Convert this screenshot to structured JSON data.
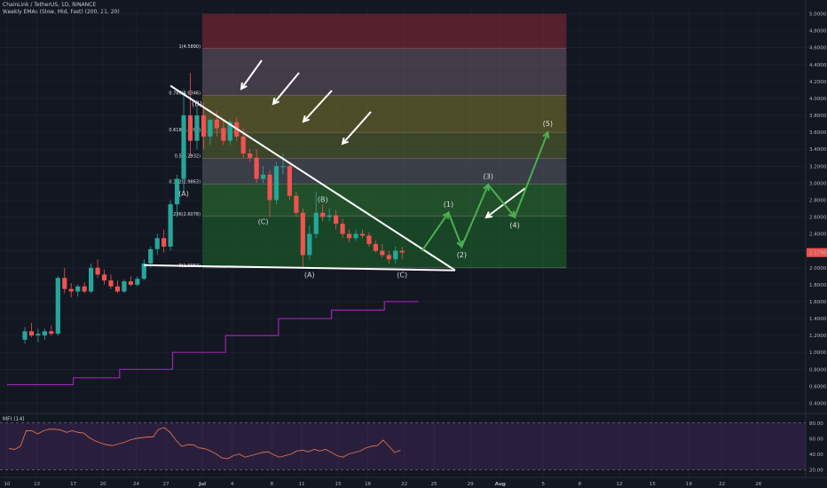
{
  "header": {
    "symbol_line": "ChainLink / TetherUS, 1D, BINANCE",
    "indicator_line": "Weekly EMAs (Slow, Mid, Fast) (200, 21, 20)"
  },
  "mfi": {
    "label": "MFI (14)",
    "axis_ticks": [
      "80.00",
      "60.00",
      "40.00",
      "20.00"
    ],
    "values": [
      47,
      46,
      50,
      70,
      70,
      66,
      70,
      72,
      72,
      71,
      68,
      70,
      68,
      67,
      61,
      57,
      54,
      52,
      51,
      53,
      55,
      58,
      60,
      61,
      62,
      62,
      72,
      74,
      68,
      58,
      50,
      52,
      52,
      48,
      47,
      44,
      40,
      35,
      34,
      38,
      40,
      36,
      38,
      40,
      42,
      43,
      39,
      36,
      38,
      40,
      44,
      45,
      43,
      46,
      44,
      46,
      42,
      38,
      36,
      40,
      42,
      44,
      48,
      50,
      51,
      58,
      50,
      42,
      45
    ]
  },
  "price": {
    "last_label": "2.1796",
    "last_value": 2.1796,
    "colors": {
      "up": "#26a69a",
      "down": "#ef5350",
      "ema": "#9c27b0",
      "projection": "#4caf50",
      "trendline": "#ffffff"
    }
  },
  "fib_labels": [
    "1(4.5890)",
    "0.786(4.0346)",
    "0.618(3.5994)",
    "0.5(3.2932)",
    "0.382(2.9863)",
    "0.236(2.6078)",
    "0(1.9984)"
  ],
  "wave_labels": [
    "(B)",
    "(A)",
    "(C)",
    "(B)",
    "(A)",
    "(C)"
  ],
  "projection_labels": [
    "(1)",
    "(2)",
    "(3)",
    "(4)",
    "(5)"
  ],
  "chart_data": {
    "type": "candlestick",
    "x_tick_labels": [
      "10",
      "13",
      "17",
      "20",
      "24",
      "27",
      "Jul",
      "4",
      "8",
      "11",
      "15",
      "18",
      "22",
      "25",
      "29",
      "Aug",
      "5",
      "8",
      "12",
      "15",
      "19",
      "22",
      "26"
    ],
    "y_tick_labels": [
      "5.0000",
      "4.8000",
      "4.6000",
      "4.4000",
      "4.2000",
      "4.0000",
      "3.8000",
      "3.6000",
      "3.4000",
      "3.2000",
      "3.0000",
      "2.8000",
      "2.6000",
      "2.4000",
      "2.2000",
      "2.0000",
      "1.8000",
      "1.6000",
      "1.4000",
      "1.2000",
      "1.0000",
      "0.8000",
      "0.6000",
      "0.4000"
    ],
    "candles": [
      [
        1.15,
        1.3,
        1.1,
        1.25
      ],
      [
        1.25,
        1.35,
        1.18,
        1.2
      ],
      [
        1.2,
        1.28,
        1.12,
        1.22
      ],
      [
        1.2,
        1.28,
        1.15,
        1.25
      ],
      [
        1.25,
        1.32,
        1.2,
        1.22
      ],
      [
        1.22,
        1.9,
        1.2,
        1.88
      ],
      [
        1.88,
        2.0,
        1.7,
        1.75
      ],
      [
        1.75,
        1.82,
        1.65,
        1.72
      ],
      [
        1.72,
        1.8,
        1.66,
        1.78
      ],
      [
        1.78,
        1.83,
        1.7,
        1.72
      ],
      [
        1.72,
        2.05,
        1.7,
        2.0
      ],
      [
        2.0,
        2.1,
        1.88,
        1.92
      ],
      [
        1.92,
        1.98,
        1.8,
        1.85
      ],
      [
        1.85,
        1.92,
        1.75,
        1.78
      ],
      [
        1.78,
        1.85,
        1.7,
        1.72
      ],
      [
        1.72,
        1.86,
        1.7,
        1.84
      ],
      [
        1.84,
        1.9,
        1.78,
        1.8
      ],
      [
        1.8,
        1.9,
        1.78,
        1.87
      ],
      [
        1.87,
        2.1,
        1.85,
        2.05
      ],
      [
        2.05,
        2.25,
        2.0,
        2.22
      ],
      [
        2.22,
        2.4,
        2.15,
        2.35
      ],
      [
        2.35,
        2.45,
        2.18,
        2.25
      ],
      [
        2.25,
        2.8,
        2.2,
        2.75
      ],
      [
        2.75,
        3.1,
        2.6,
        3.05
      ],
      [
        3.05,
        4.1,
        2.9,
        3.8
      ],
      [
        3.8,
        4.3,
        3.3,
        3.5
      ],
      [
        3.5,
        3.9,
        3.4,
        3.8
      ],
      [
        3.8,
        3.95,
        3.4,
        3.55
      ],
      [
        3.55,
        3.75,
        3.45,
        3.75
      ],
      [
        3.75,
        3.85,
        3.55,
        3.65
      ],
      [
        3.65,
        3.75,
        3.45,
        3.5
      ],
      [
        3.5,
        3.75,
        3.45,
        3.72
      ],
      [
        3.72,
        3.78,
        3.5,
        3.55
      ],
      [
        3.55,
        3.65,
        3.3,
        3.35
      ],
      [
        3.35,
        3.4,
        3.25,
        3.3
      ],
      [
        3.3,
        3.4,
        3.0,
        3.05
      ],
      [
        3.05,
        3.2,
        3.0,
        3.1
      ],
      [
        3.1,
        3.15,
        2.6,
        2.8
      ],
      [
        2.8,
        3.25,
        2.75,
        3.2
      ],
      [
        3.2,
        3.35,
        3.1,
        3.2
      ],
      [
        3.2,
        3.25,
        2.8,
        2.85
      ],
      [
        2.85,
        2.9,
        2.6,
        2.65
      ],
      [
        2.65,
        2.7,
        2.0,
        2.15
      ],
      [
        2.15,
        2.5,
        2.1,
        2.4
      ],
      [
        2.4,
        2.9,
        2.35,
        2.65
      ],
      [
        2.65,
        2.75,
        2.55,
        2.6
      ],
      [
        2.6,
        2.7,
        2.55,
        2.62
      ],
      [
        2.62,
        2.68,
        2.45,
        2.52
      ],
      [
        2.52,
        2.58,
        2.35,
        2.4
      ],
      [
        2.4,
        2.45,
        2.3,
        2.35
      ],
      [
        2.35,
        2.45,
        2.32,
        2.4
      ],
      [
        2.4,
        2.45,
        2.35,
        2.38
      ],
      [
        2.38,
        2.42,
        2.25,
        2.28
      ],
      [
        2.28,
        2.32,
        2.18,
        2.2
      ],
      [
        2.2,
        2.28,
        2.12,
        2.15
      ],
      [
        2.15,
        2.2,
        2.05,
        2.1
      ],
      [
        2.1,
        2.25,
        2.05,
        2.2
      ],
      [
        2.2,
        2.25,
        2.1,
        2.18
      ]
    ],
    "ema_weekly": [
      [
        0,
        0.62
      ],
      [
        10,
        0.7
      ],
      [
        17,
        0.8
      ],
      [
        25,
        1.0
      ],
      [
        33,
        1.2
      ],
      [
        41,
        1.4
      ],
      [
        49,
        1.5
      ],
      [
        57,
        1.6
      ],
      [
        62,
        1.61
      ]
    ],
    "fib_levels": [
      {
        "ratio": "1",
        "price": 4.589,
        "fill": "#8a2a34"
      },
      {
        "ratio": "0.786",
        "price": 4.0346,
        "fill": "#6b5a67"
      },
      {
        "ratio": "0.618",
        "price": 3.5994,
        "fill": "#7b7a2e"
      },
      {
        "ratio": "0.5",
        "price": 3.2932,
        "fill": "#5d6b2f"
      },
      {
        "ratio": "0.382",
        "price": 2.9863,
        "fill": "#5a5e66"
      },
      {
        "ratio": "0.236",
        "price": 2.6078,
        "fill": "#2e7d32"
      },
      {
        "ratio": "0",
        "price": 1.9984,
        "fill": "#1e6b2a"
      }
    ],
    "fib_top": 5.0,
    "trendline": [
      [
        22,
        4.15
      ],
      [
        65,
        1.97
      ]
    ],
    "support_line": [
      [
        18,
        2.03
      ],
      [
        65,
        1.97
      ]
    ],
    "wave_points": [
      [
        26,
        3.95
      ],
      [
        24,
        2.95
      ],
      [
        36,
        2.62
      ],
      [
        45,
        2.82
      ],
      [
        43,
        1.99
      ],
      [
        57,
        1.99
      ]
    ],
    "projection_path": [
      [
        60,
        2.2
      ],
      [
        64,
        2.65
      ],
      [
        66,
        2.25
      ],
      [
        70,
        2.98
      ],
      [
        74,
        2.6
      ],
      [
        79,
        3.6
      ]
    ],
    "y_range": [
      0.3,
      5.1
    ]
  }
}
